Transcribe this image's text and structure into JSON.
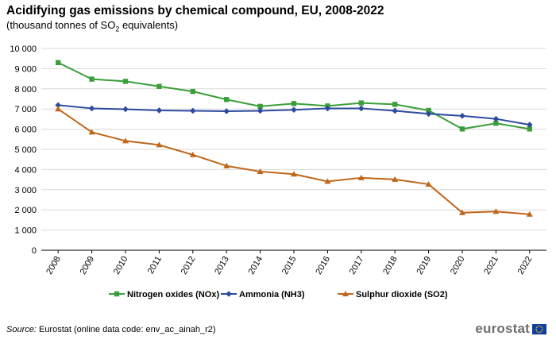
{
  "header": {
    "title": "Acidifying gas emissions by chemical compound, EU, 2008-2022",
    "subtitle_prefix": "(thousand  tonnes of SO",
    "subtitle_sub": "2",
    "subtitle_suffix": " equivalents)"
  },
  "chart_data": {
    "type": "line",
    "title": "Acidifying gas emissions by chemical compound, EU, 2008-2022",
    "ylabel": "thousand tonnes of SO2 equivalents",
    "xlabel": "",
    "ylim": [
      0,
      10000
    ],
    "yticks": [
      0,
      1000,
      2000,
      3000,
      4000,
      5000,
      6000,
      7000,
      8000,
      9000,
      10000
    ],
    "ytick_labels": [
      "0",
      "1 000",
      "2 000",
      "3 000",
      "4 000",
      "5 000",
      "6 000",
      "7 000",
      "8 000",
      "9 000",
      "10 000"
    ],
    "categories": [
      "2008",
      "2009",
      "2010",
      "2011",
      "2012",
      "2013",
      "2014",
      "2015",
      "2016",
      "2017",
      "2018",
      "2019",
      "2020",
      "2021",
      "2022"
    ],
    "legend_position": "bottom",
    "grid": true,
    "series": [
      {
        "name": "Nitrogen oxides (NOx)",
        "color": "#3a9f3a",
        "marker": "square",
        "values": [
          9300,
          8480,
          8370,
          8120,
          7870,
          7470,
          7130,
          7270,
          7150,
          7300,
          7230,
          6930,
          6010,
          6290,
          6010
        ]
      },
      {
        "name": "Ammonia (NH3)",
        "color": "#2e4a9f",
        "marker": "diamond",
        "values": [
          7190,
          7030,
          6990,
          6930,
          6910,
          6890,
          6910,
          6960,
          7030,
          7030,
          6910,
          6760,
          6660,
          6510,
          6220
        ]
      },
      {
        "name": "Sulphur dioxide (SO2)",
        "color": "#c0661a",
        "marker": "triangle",
        "values": [
          7000,
          5850,
          5420,
          5220,
          4730,
          4180,
          3900,
          3770,
          3410,
          3590,
          3510,
          3270,
          1860,
          1920,
          1780
        ]
      }
    ]
  },
  "footer": {
    "source_label": "Source:",
    "source_text": " Eurostat (online data code: env_ac_ainah_r2)"
  },
  "branding": {
    "logo_text": "eurostat",
    "flag_color": "#0e3fa0",
    "star_color": "#ffcc00"
  }
}
